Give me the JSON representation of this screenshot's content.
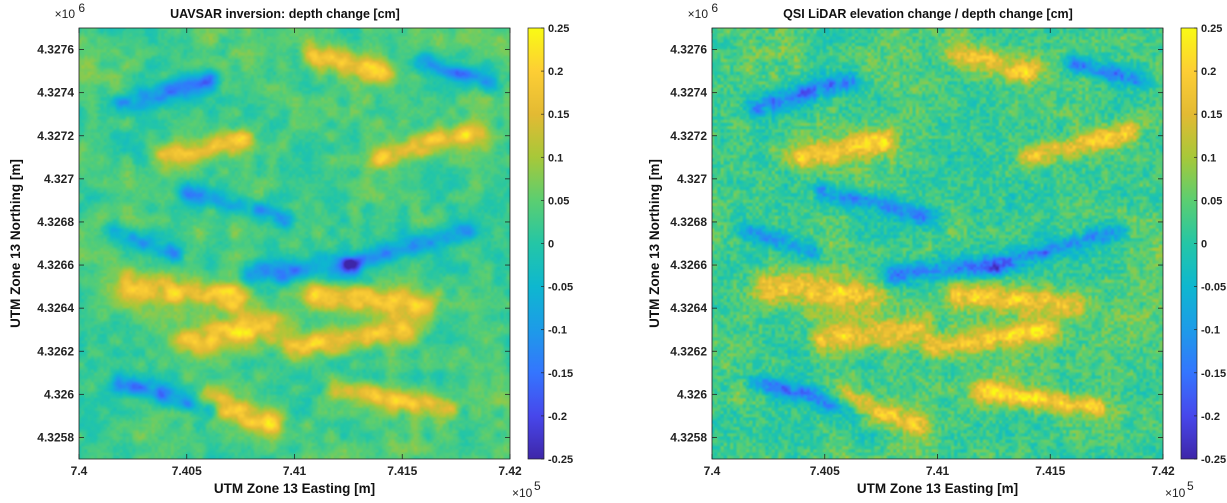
{
  "chart_data": [
    {
      "type": "heatmap",
      "title": "UAVSAR inversion: depth change [cm]",
      "xlabel": "UTM Zone 13 Easting [m]",
      "ylabel": "UTM Zone 13 Northing [m]",
      "x_multiplier": "×10",
      "x_multiplier_exp": "5",
      "y_multiplier": "×10",
      "y_multiplier_exp": "6",
      "xlim": [
        7.4,
        7.42
      ],
      "ylim": [
        4.3257,
        4.3277
      ],
      "x_ticks": [
        7.4,
        7.405,
        7.41,
        7.415,
        7.42
      ],
      "x_tick_labels": [
        "7.4",
        "7.405",
        "7.41",
        "7.415",
        "7.42"
      ],
      "y_ticks": [
        4.3258,
        4.326,
        4.3262,
        4.3264,
        4.3266,
        4.3268,
        4.327,
        4.3272,
        4.3274,
        4.3276
      ],
      "y_tick_labels": [
        "4.3258",
        "4.326",
        "4.3262",
        "4.3264",
        "4.3266",
        "4.3268",
        "4.327",
        "4.3272",
        "4.3274",
        "4.3276"
      ],
      "colorbar": {
        "colormap": "parula",
        "clim": [
          -0.25,
          0.25
        ],
        "ticks": [
          -0.25,
          -0.2,
          -0.15,
          -0.1,
          -0.05,
          0,
          0.05,
          0.1,
          0.15,
          0.2,
          0.25
        ],
        "tick_labels": [
          "-0.25",
          "-0.2",
          "-0.15",
          "-0.1",
          "-0.05",
          "0",
          "0.05",
          "0.1",
          "0.15",
          "0.2",
          "0.25"
        ]
      },
      "grid": false,
      "texture": "smooth"
    },
    {
      "type": "heatmap",
      "title": "QSI LiDAR elevation change / depth change [cm]",
      "xlabel": "UTM Zone 13 Easting [m]",
      "ylabel": "UTM Zone 13 Northing [m]",
      "x_multiplier": "×10",
      "x_multiplier_exp": "5",
      "y_multiplier": "×10",
      "y_multiplier_exp": "6",
      "xlim": [
        7.4,
        7.42
      ],
      "ylim": [
        4.3257,
        4.3277
      ],
      "x_ticks": [
        7.4,
        7.405,
        7.41,
        7.415,
        7.42
      ],
      "x_tick_labels": [
        "7.4",
        "7.405",
        "7.41",
        "7.415",
        "7.42"
      ],
      "y_ticks": [
        4.3258,
        4.326,
        4.3262,
        4.3264,
        4.3266,
        4.3268,
        4.327,
        4.3272,
        4.3274,
        4.3276
      ],
      "y_tick_labels": [
        "4.3258",
        "4.326",
        "4.3262",
        "4.3264",
        "4.3266",
        "4.3268",
        "4.327",
        "4.3272",
        "4.3274",
        "4.3276"
      ],
      "colorbar": {
        "colormap": "parula",
        "clim": [
          -0.25,
          0.25
        ],
        "ticks": [
          -0.25,
          -0.2,
          -0.15,
          -0.1,
          -0.05,
          0,
          0.05,
          0.1,
          0.15,
          0.2,
          0.25
        ],
        "tick_labels": [
          "-0.25",
          "-0.2",
          "-0.15",
          "-0.1",
          "-0.05",
          "0",
          "0.05",
          "0.1",
          "0.15",
          "0.2",
          "0.25"
        ]
      },
      "grid": false,
      "texture": "fine"
    }
  ]
}
